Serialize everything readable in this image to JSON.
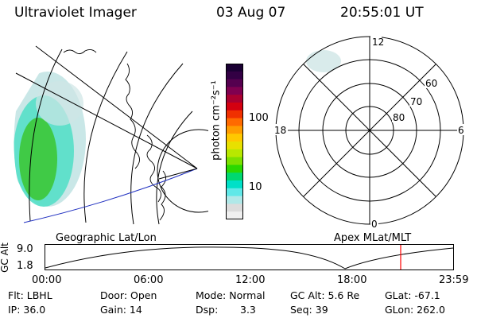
{
  "header": {
    "instrument": "Ultraviolet Imager",
    "date": "03 Aug 07",
    "time": "20:55:01 UT"
  },
  "colorbar": {
    "unit_label": "photon cm⁻²s⁻¹",
    "ticks": [
      "100",
      "10"
    ],
    "colors": [
      "#1a0033",
      "#330044",
      "#55004f",
      "#800050",
      "#aa0030",
      "#d40010",
      "#f03000",
      "#ff6a00",
      "#ff9c00",
      "#ffc800",
      "#e8e000",
      "#b8e800",
      "#7ce000",
      "#2ad800",
      "#00d870",
      "#00e0c8",
      "#60e8e8",
      "#b0e8e8",
      "#dcdcdc",
      "#f0f0f0"
    ]
  },
  "geo_panel": {
    "label": "Geographic Lat/Lon",
    "glow_colors": [
      "#3ec83e",
      "#55dfc8",
      "#bfe3e3"
    ]
  },
  "polar_panel": {
    "label": "Apex MLat/MLT",
    "hour_labels": {
      "top": "12",
      "left": "18",
      "right": "6",
      "bottom": "0"
    },
    "lat_labels": [
      "60",
      "70",
      "80"
    ]
  },
  "altitude_panel": {
    "axis_label": "GC Alt",
    "y_ticks": [
      "9.0",
      "1.8"
    ],
    "x_ticks": [
      "00:00",
      "06:00",
      "12:00",
      "18:00",
      "23:59"
    ],
    "current_time_color": "#ff0000"
  },
  "info": {
    "filter": "Flt: LBHL",
    "ip": "IP: 36.0",
    "door": "Door: Open",
    "gain": "Gain: 14",
    "mode": "Mode: Normal",
    "dsp_label": "Dsp:",
    "dsp_value": "3.3",
    "gc_alt": "GC Alt: 5.6 Re",
    "seq": "Seq: 39",
    "glat": "GLat: -67.1",
    "glon": "GLon: 262.0"
  }
}
